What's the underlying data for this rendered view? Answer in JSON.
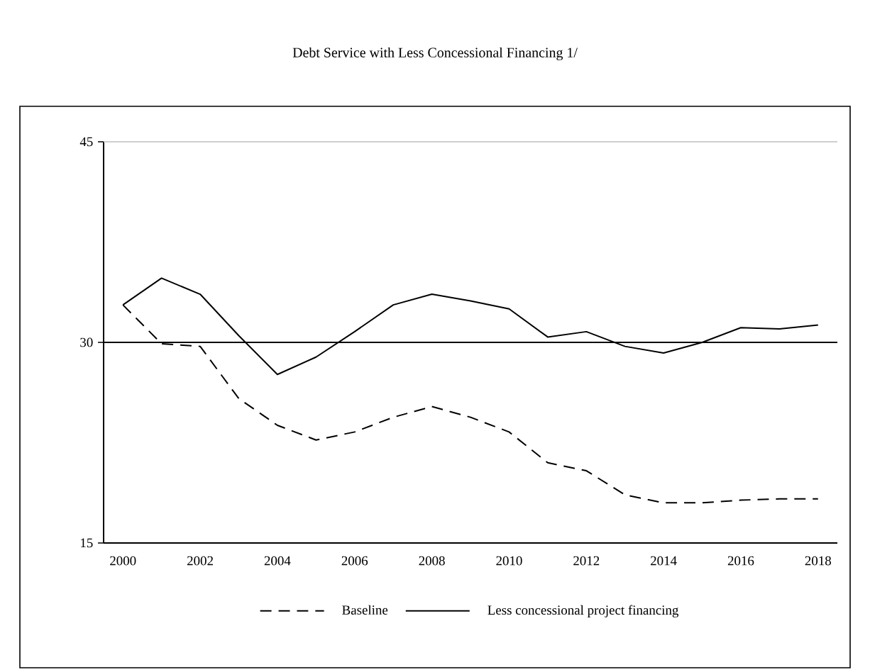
{
  "chart_data": {
    "type": "line",
    "title": "Debt Service with Less Concessional Financing 1/",
    "categories": [
      "2000",
      null,
      "2002",
      null,
      "2004",
      null,
      "2006",
      null,
      "2008",
      null,
      "2010",
      null,
      "2012",
      null,
      "2014",
      null,
      "2016",
      null,
      "2018"
    ],
    "series": [
      {
        "name": "Baseline",
        "color": "#000000",
        "line_style": "dashed",
        "values": [
          32.8,
          29.9,
          29.7,
          25.8,
          23.8,
          22.7,
          23.3,
          24.4,
          25.2,
          24.4,
          23.3,
          21.0,
          20.4,
          18.6,
          18.0,
          18.0,
          18.2,
          18.3,
          18.3
        ]
      },
      {
        "name": "Less concessional project financing",
        "color": "#000000",
        "line_style": "solid",
        "values": [
          32.8,
          34.8,
          33.6,
          30.5,
          27.6,
          28.9,
          30.8,
          32.8,
          33.6,
          33.1,
          32.5,
          30.4,
          30.8,
          29.7,
          29.2,
          30.0,
          31.1,
          31.0,
          31.3
        ]
      }
    ],
    "ylim": [
      15,
      45
    ],
    "yticks": [
      15,
      30,
      45
    ],
    "ref_lines": [
      {
        "axis": "y",
        "value": 30,
        "color": "#000000"
      }
    ],
    "legend": "bottom",
    "grid": false,
    "marker": "none"
  }
}
